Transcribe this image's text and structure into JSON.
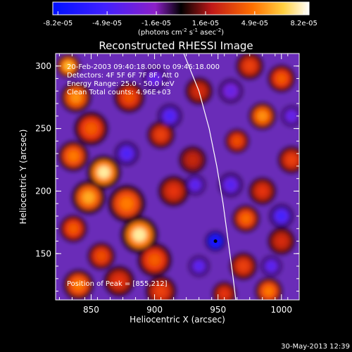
{
  "chart_data": {
    "type": "heatmap",
    "title": "Reconstructed RHESSI Image",
    "xlabel": "Heliocentric X (arcsec)",
    "ylabel": "Heliocentric Y (arcsec)",
    "xlim": [
      822,
      1014
    ],
    "ylim": [
      113,
      310
    ],
    "x_ticks": [
      850,
      900,
      950,
      1000
    ],
    "y_ticks": [
      150,
      200,
      250,
      300
    ],
    "colorbar": {
      "ticks": [
        "-8.2e-05",
        "-4.9e-05",
        "-1.6e-05",
        "1.6e-05",
        "4.9e-05",
        "8.2e-05"
      ],
      "range": [
        -8.2e-05,
        8.2e-05
      ],
      "unit_line_1": "(photons cm",
      "unit_exp_1": "-2",
      "unit_line_2": " s",
      "unit_exp_2": "-1",
      "unit_line_3": " asec",
      "unit_exp_3": "-2",
      "unit_close": ")"
    },
    "info_lines": [
      "20-Feb-2003 09:40:18.000  to 09:46:18.000",
      "Detectors: 4F 5F 6F 7F 8F, Att 0",
      "Energy Range: 25.0 - 50.0 keV",
      "Clean    Total counts: 4.96E+03"
    ],
    "peak_label": "Position of Peak = [855,212]",
    "peak_position": [
      855,
      212
    ],
    "limb_curve": [
      [
        923,
        310
      ],
      [
        935,
        280
      ],
      [
        943,
        250
      ],
      [
        949,
        220
      ],
      [
        954,
        190
      ],
      [
        958,
        160
      ],
      [
        962,
        130
      ],
      [
        964,
        113
      ]
    ],
    "blobs": [
      {
        "x": 832,
        "y": 300,
        "v": 0.85,
        "r": 7
      },
      {
        "x": 838,
        "y": 275,
        "v": 0.75,
        "r": 9
      },
      {
        "x": 850,
        "y": 250,
        "v": 0.6,
        "r": 10
      },
      {
        "x": 836,
        "y": 228,
        "v": 0.7,
        "r": 9
      },
      {
        "x": 860,
        "y": 215,
        "v": 0.95,
        "r": 10
      },
      {
        "x": 848,
        "y": 195,
        "v": 0.8,
        "r": 10
      },
      {
        "x": 836,
        "y": 170,
        "v": 0.6,
        "r": 8
      },
      {
        "x": 858,
        "y": 148,
        "v": 0.55,
        "r": 8
      },
      {
        "x": 840,
        "y": 125,
        "v": 0.7,
        "r": 9
      },
      {
        "x": 880,
        "y": 275,
        "v": 0.55,
        "r": 9
      },
      {
        "x": 878,
        "y": 190,
        "v": 0.7,
        "r": 11
      },
      {
        "x": 888,
        "y": 165,
        "v": 0.95,
        "r": 11
      },
      {
        "x": 900,
        "y": 145,
        "v": 0.6,
        "r": 10
      },
      {
        "x": 872,
        "y": 128,
        "v": 0.45,
        "r": 9
      },
      {
        "x": 905,
        "y": 245,
        "v": 0.5,
        "r": 8
      },
      {
        "x": 915,
        "y": 200,
        "v": 0.45,
        "r": 9
      },
      {
        "x": 905,
        "y": 120,
        "v": 0.5,
        "r": 9
      },
      {
        "x": 935,
        "y": 280,
        "v": 0.4,
        "r": 8
      },
      {
        "x": 930,
        "y": 225,
        "v": 0.35,
        "r": 8
      },
      {
        "x": 975,
        "y": 300,
        "v": 0.5,
        "r": 8
      },
      {
        "x": 1000,
        "y": 290,
        "v": 0.6,
        "r": 8
      },
      {
        "x": 985,
        "y": 260,
        "v": 0.75,
        "r": 8
      },
      {
        "x": 965,
        "y": 240,
        "v": 0.55,
        "r": 7
      },
      {
        "x": 1008,
        "y": 225,
        "v": 0.5,
        "r": 8
      },
      {
        "x": 985,
        "y": 200,
        "v": 0.45,
        "r": 8
      },
      {
        "x": 972,
        "y": 178,
        "v": 0.65,
        "r": 8
      },
      {
        "x": 1000,
        "y": 160,
        "v": 0.4,
        "r": 8
      },
      {
        "x": 970,
        "y": 140,
        "v": 0.5,
        "r": 8
      },
      {
        "x": 990,
        "y": 120,
        "v": 0.7,
        "r": 8
      },
      {
        "x": 955,
        "y": 118,
        "v": 0.45,
        "r": 7
      },
      {
        "x": 878,
        "y": 230,
        "v": -0.55,
        "r": 7
      },
      {
        "x": 912,
        "y": 260,
        "v": -0.55,
        "r": 7
      },
      {
        "x": 932,
        "y": 205,
        "v": -0.5,
        "r": 6
      },
      {
        "x": 948,
        "y": 160,
        "v": -1.0,
        "r": 6
      },
      {
        "x": 935,
        "y": 140,
        "v": -0.5,
        "r": 6
      },
      {
        "x": 960,
        "y": 205,
        "v": -0.5,
        "r": 7
      },
      {
        "x": 1000,
        "y": 180,
        "v": -0.6,
        "r": 7
      },
      {
        "x": 1008,
        "y": 260,
        "v": -0.45,
        "r": 6
      },
      {
        "x": 960,
        "y": 280,
        "v": -0.4,
        "r": 7
      },
      {
        "x": 992,
        "y": 140,
        "v": -0.5,
        "r": 6
      },
      {
        "x": 900,
        "y": 290,
        "v": -0.45,
        "r": 7
      }
    ]
  },
  "footer": {
    "date": "30-May-2013 12:39"
  }
}
